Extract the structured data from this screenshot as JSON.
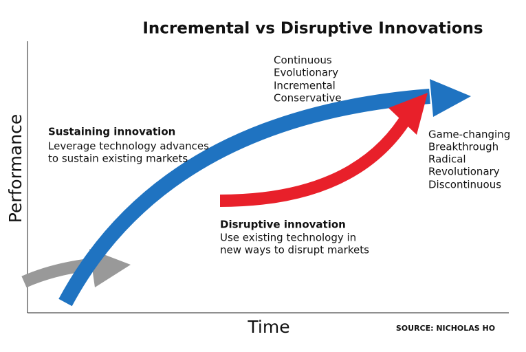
{
  "title": "Incremental vs Disruptive Innovations",
  "y_axis_label": "Performance",
  "x_axis_label": "Time",
  "source": "SOURCE: NICHOLAS HO",
  "top_labels": [
    "Continuous",
    "Evolutionary",
    "Incremental",
    "Conservative"
  ],
  "right_labels": [
    "Game-changing",
    "Breakthrough",
    "Radical",
    "Revolutionary",
    "Discontinuous"
  ],
  "sustaining": {
    "heading": "Sustaining innovation",
    "lines": [
      "Leverage technology advances",
      "to sustain existing markets"
    ]
  },
  "disruptive": {
    "heading": "Disruptive innovation",
    "lines": [
      "Use existing technology in",
      "new ways to disrupt markets"
    ]
  }
}
